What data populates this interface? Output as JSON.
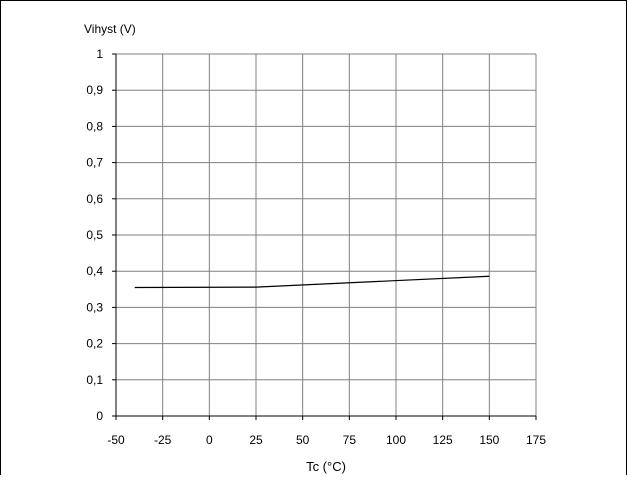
{
  "chart_data": {
    "type": "line",
    "title": "",
    "xlabel": "Tc (°C)",
    "ylabel": "Vihyst (V)",
    "xlim": [
      -50,
      175
    ],
    "ylim": [
      0,
      1
    ],
    "xticks": [
      -50,
      -25,
      0,
      25,
      50,
      75,
      100,
      125,
      150,
      175
    ],
    "xtick_labels": [
      "-50",
      "-25",
      "0",
      "25",
      "50",
      "75",
      "100",
      "125",
      "150",
      "175"
    ],
    "yticks": [
      0,
      0.1,
      0.2,
      0.3,
      0.4,
      0.5,
      0.6,
      0.7,
      0.8,
      0.9,
      1
    ],
    "ytick_labels": [
      "0",
      "0,1",
      "0,2",
      "0,3",
      "0,4",
      "0,5",
      "0,6",
      "0,7",
      "0,8",
      "0,9",
      "1"
    ],
    "grid": true,
    "series": [
      {
        "x": [
          -40,
          25,
          150
        ],
        "y": [
          0.355,
          0.356,
          0.386
        ]
      }
    ]
  },
  "colors": {
    "line": "#000000",
    "grid": "#808080",
    "axis": "#000000"
  }
}
